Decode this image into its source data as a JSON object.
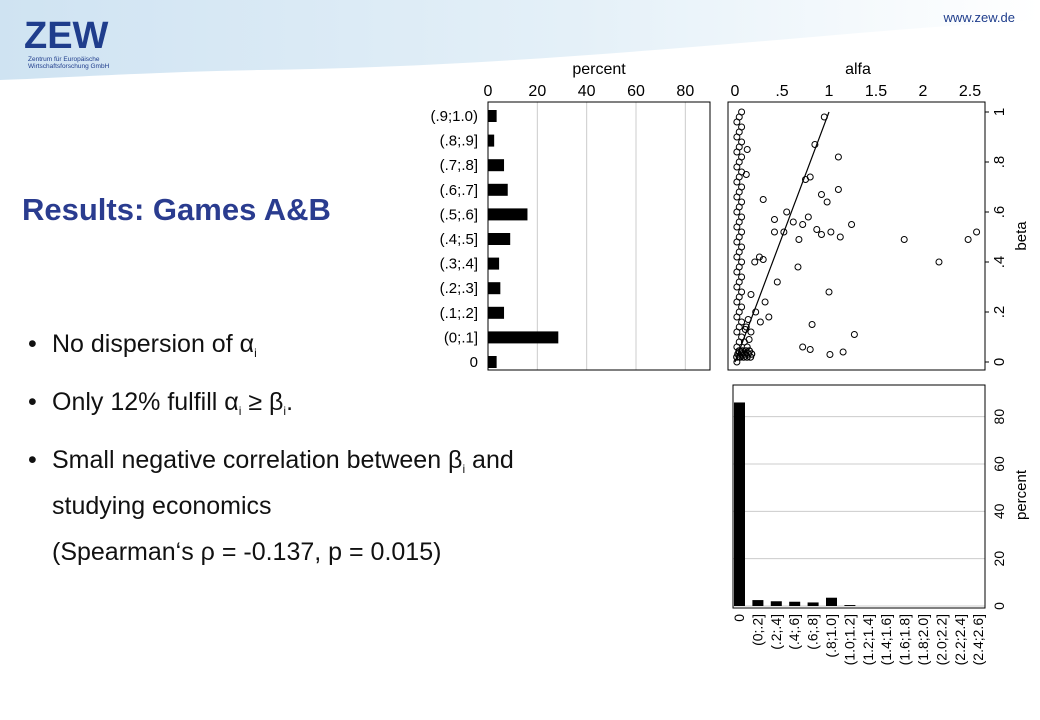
{
  "header": {
    "logo_text": "ZEW",
    "logo_subtitle_line1": "Zentrum für Europäische",
    "logo_subtitle_line2": "Wirtschaftsforschung GmbH",
    "website": "www.zew.de"
  },
  "title": "Results: Games A&B",
  "bullets": {
    "b1": {
      "text": "No dispersion of α",
      "sub": "i"
    },
    "b2": {
      "pre": "Only 12% fulfill α",
      "sub1": "i",
      "mid": " ≥ β",
      "sub2": "i",
      "post": "."
    },
    "b3": {
      "pre": "Small negative correlation between β",
      "sub": "i",
      "post": " and"
    },
    "b3_line2": "studying economics",
    "b3_line3": "(Spearman‘s ρ = -0.137, p = 0.015)"
  },
  "colors": {
    "title": "#2a3c8f",
    "logo": "#1f3d8c",
    "bars": "#000000",
    "grid": "#cccccc"
  },
  "chart_data": [
    {
      "type": "bar",
      "orientation": "horizontal",
      "axis_title": "percent",
      "xlim": [
        0,
        90
      ],
      "ticks": [
        0,
        20,
        40,
        60,
        80
      ],
      "categories": [
        "(.9;1.0)",
        "(.8;.9]",
        "(.7;.8]",
        "(.6;.7]",
        "(.5;.6]",
        "(.4;.5]",
        "(.3;.4]",
        "(.2;.3]",
        "(.1;.2]",
        "(0;.1]",
        "0"
      ],
      "values": [
        3.5,
        2.5,
        6.5,
        8,
        16,
        9,
        4.5,
        5,
        6.5,
        28.5,
        3.5
      ],
      "grid": true
    },
    {
      "type": "scatter",
      "xlabel": "alfa",
      "ylabel": "beta",
      "xlim": [
        0,
        2.7
      ],
      "ylim": [
        0,
        1
      ],
      "xticks": [
        0,
        0.5,
        1,
        1.5,
        2,
        2.5
      ],
      "xtick_labels": [
        "0",
        ".5",
        "1",
        "1.5",
        "2",
        "2.5"
      ],
      "yticks": [
        0,
        0.2,
        0.4,
        0.6,
        0.8,
        1
      ],
      "ytick_labels": [
        "0",
        ".2",
        ".4",
        ".6",
        ".8",
        "1"
      ],
      "diagonal": [
        [
          0,
          0
        ],
        [
          1,
          1
        ]
      ],
      "points": [
        [
          0.95,
          0.98
        ],
        [
          0.85,
          0.87
        ],
        [
          1.1,
          0.82
        ],
        [
          0.75,
          0.73
        ],
        [
          0.8,
          0.74
        ],
        [
          1.1,
          0.69
        ],
        [
          0.92,
          0.67
        ],
        [
          0.98,
          0.64
        ],
        [
          0.78,
          0.58
        ],
        [
          0.42,
          0.57
        ],
        [
          0.62,
          0.56
        ],
        [
          0.72,
          0.55
        ],
        [
          0.87,
          0.53
        ],
        [
          1.02,
          0.52
        ],
        [
          1.24,
          0.55
        ],
        [
          2.57,
          0.52
        ],
        [
          2.48,
          0.49
        ],
        [
          1.8,
          0.49
        ],
        [
          0.42,
          0.52
        ],
        [
          0.52,
          0.52
        ],
        [
          0.92,
          0.51
        ],
        [
          1.12,
          0.5
        ],
        [
          0.68,
          0.49
        ],
        [
          0.67,
          0.38
        ],
        [
          0.26,
          0.42
        ],
        [
          0.3,
          0.41
        ],
        [
          0.21,
          0.4
        ],
        [
          2.17,
          0.4
        ],
        [
          0.45,
          0.32
        ],
        [
          1.0,
          0.28
        ],
        [
          0.17,
          0.27
        ],
        [
          0.32,
          0.24
        ],
        [
          0.22,
          0.2
        ],
        [
          0.36,
          0.18
        ],
        [
          0.27,
          0.16
        ],
        [
          0.17,
          0.12
        ],
        [
          0.14,
          0.17
        ],
        [
          0.82,
          0.15
        ],
        [
          1.27,
          0.11
        ],
        [
          0.12,
          0.14
        ],
        [
          0.11,
          0.13
        ],
        [
          0.1,
          0.08
        ],
        [
          0.72,
          0.06
        ],
        [
          0.8,
          0.05
        ],
        [
          1.15,
          0.04
        ],
        [
          1.01,
          0.03
        ],
        [
          0.15,
          0.09
        ],
        [
          0.13,
          0.06
        ],
        [
          0.55,
          0.6
        ],
        [
          0.3,
          0.65
        ],
        [
          0.12,
          0.75
        ],
        [
          0.13,
          0.85
        ]
      ]
    },
    {
      "type": "bar",
      "orientation": "vertical",
      "axis_title": "percent",
      "ylim": [
        0,
        90
      ],
      "ticks": [
        0,
        20,
        40,
        60,
        80
      ],
      "categories": [
        "0",
        "(0;.2]",
        "(.2;.4]",
        "(.4;.6]",
        "(.6;.8]",
        "(.8;1.0]",
        "(1.0;1.2]",
        "(1.2;1.4]",
        "(1.4;1.6]",
        "(1.6;1.8]",
        "(1.8;2.0]",
        "(2.0;2.2]",
        "(2.2;2.4]",
        "(2.4;2.6]"
      ],
      "values": [
        86,
        2.5,
        2,
        1.8,
        1.5,
        3.5,
        0.4,
        0,
        0,
        0,
        0,
        0,
        0,
        0
      ],
      "grid": true
    }
  ]
}
